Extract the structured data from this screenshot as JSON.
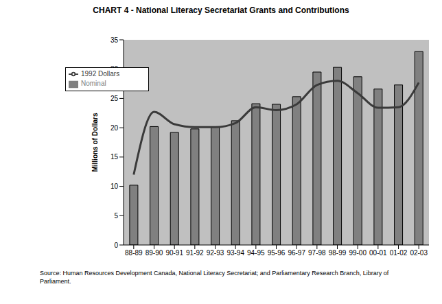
{
  "chart_data": {
    "type": "bar",
    "title": "CHART 4 - National Literacy Secretariat Grants and Contributions",
    "y_label": "Millions of Dollars",
    "annotations": [
      "Source: Human Resources Development Canada, National Literacy Secretariat; and Parliamentary Research Branch, Library of Parliament."
    ],
    "categories": [
      "88-89",
      "89-90",
      "90-91",
      "91-92",
      "92-93",
      "93-94",
      "94-95",
      "95-96",
      "96-97",
      "97-98",
      "98-99",
      "99-00",
      "00-01",
      "01-02",
      "02-03"
    ],
    "series": [
      {
        "name": "Nominal",
        "type": "bar",
        "color": "#808080",
        "values": [
          10.2,
          20.2,
          19.2,
          19.8,
          20.1,
          21.2,
          24.1,
          24.0,
          25.3,
          29.5,
          30.3,
          28.7,
          26.6,
          27.3,
          33.0
        ]
      },
      {
        "name": "1992 Dollars",
        "type": "line",
        "color": "#3a3a3a",
        "marker": "none",
        "values": [
          12.0,
          22.7,
          20.6,
          20.1,
          20.1,
          20.8,
          23.5,
          23.0,
          24.0,
          27.3,
          28.0,
          25.9,
          23.4,
          23.5,
          27.7
        ]
      }
    ],
    "ylim": [
      0,
      35
    ],
    "yticks": [
      0,
      5,
      10,
      15,
      20,
      25,
      30,
      35
    ],
    "grid": false,
    "legend": "upper left"
  }
}
